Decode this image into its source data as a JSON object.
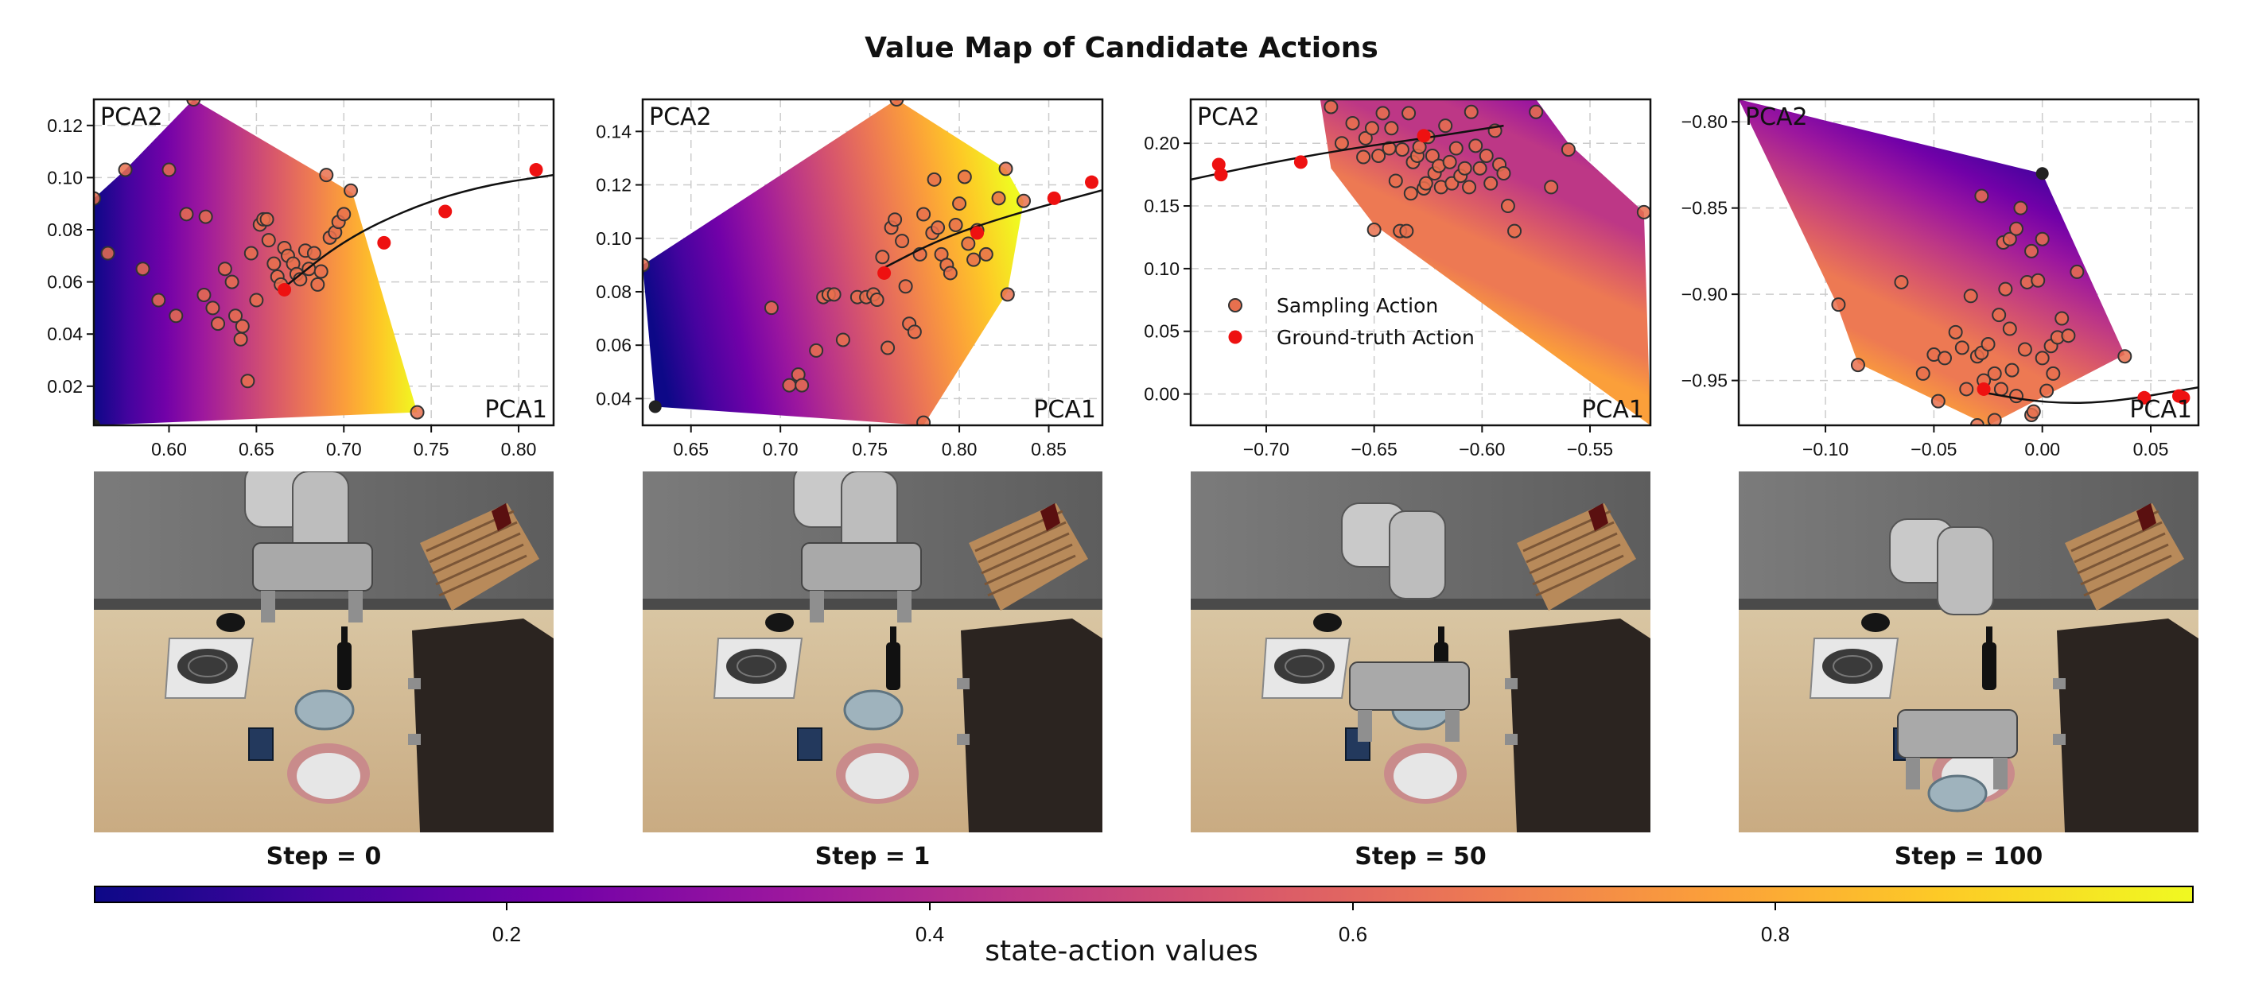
{
  "figure": {
    "title": "Value Map of Candidate Actions",
    "colorbar_label": "state-action values",
    "colorbar_ticks": [
      "0.2",
      "0.4",
      "0.6",
      "0.8"
    ],
    "colormap": "plasma"
  },
  "colors": {
    "sampling": "#e8704e",
    "ground_truth": "#ee1111",
    "marker_edge": "#333333",
    "boundary_point": "#222222",
    "grid": "#cccccc"
  },
  "legend": {
    "sampling": "Sampling Action",
    "ground_truth": "Ground-truth Action",
    "placement": "panel-3 middle-left"
  },
  "chart_data": [
    {
      "type": "scatter",
      "step_label": "Step = 0",
      "xlabel": "PCA1",
      "ylabel": "PCA2",
      "xlim": [
        0.557,
        0.82
      ],
      "ylim": [
        0.005,
        0.13
      ],
      "xticks": [
        0.6,
        0.65,
        0.7,
        0.75,
        0.8
      ],
      "xticklabels": [
        "0.60",
        "0.65",
        "0.70",
        "0.75",
        "0.80"
      ],
      "yticks": [
        0.02,
        0.04,
        0.06,
        0.08,
        0.1,
        0.12
      ],
      "yticklabels": [
        "0.02",
        "0.04",
        "0.06",
        "0.08",
        "0.10",
        "0.12"
      ],
      "value_gradient": {
        "direction": 0,
        "vmin": 0.05,
        "vmax": 0.97
      },
      "hull": [
        [
          0.614,
          0.13
        ],
        [
          0.69,
          0.1
        ],
        [
          0.705,
          0.094
        ],
        [
          0.742,
          0.01
        ],
        [
          0.557,
          0.005
        ],
        [
          0.557,
          0.092
        ],
        [
          0.575,
          0.103
        ]
      ],
      "sampling": [
        [
          0.557,
          0.092
        ],
        [
          0.565,
          0.071
        ],
        [
          0.575,
          0.103
        ],
        [
          0.585,
          0.065
        ],
        [
          0.594,
          0.053
        ],
        [
          0.6,
          0.103
        ],
        [
          0.604,
          0.047
        ],
        [
          0.61,
          0.086
        ],
        [
          0.621,
          0.085
        ],
        [
          0.62,
          0.055
        ],
        [
          0.625,
          0.05
        ],
        [
          0.628,
          0.044
        ],
        [
          0.632,
          0.065
        ],
        [
          0.636,
          0.06
        ],
        [
          0.638,
          0.047
        ],
        [
          0.641,
          0.038
        ],
        [
          0.642,
          0.043
        ],
        [
          0.647,
          0.071
        ],
        [
          0.652,
          0.082
        ],
        [
          0.654,
          0.084
        ],
        [
          0.65,
          0.053
        ],
        [
          0.656,
          0.084
        ],
        [
          0.657,
          0.076
        ],
        [
          0.66,
          0.067
        ],
        [
          0.662,
          0.062
        ],
        [
          0.664,
          0.059
        ],
        [
          0.666,
          0.073
        ],
        [
          0.668,
          0.07
        ],
        [
          0.671,
          0.067
        ],
        [
          0.673,
          0.063
        ],
        [
          0.675,
          0.061
        ],
        [
          0.678,
          0.072
        ],
        [
          0.68,
          0.065
        ],
        [
          0.683,
          0.071
        ],
        [
          0.685,
          0.059
        ],
        [
          0.687,
          0.064
        ],
        [
          0.69,
          0.101
        ],
        [
          0.692,
          0.077
        ],
        [
          0.695,
          0.079
        ],
        [
          0.697,
          0.083
        ],
        [
          0.7,
          0.086
        ],
        [
          0.704,
          0.095
        ],
        [
          0.645,
          0.022
        ],
        [
          0.614,
          0.13
        ],
        [
          0.742,
          0.01
        ]
      ],
      "ground_truth": [
        [
          0.666,
          0.057
        ],
        [
          0.723,
          0.075
        ],
        [
          0.758,
          0.087
        ],
        [
          0.81,
          0.103
        ]
      ],
      "boundary_points": [
        [
          0.557,
          0.005
        ]
      ],
      "trajectory": [
        [
          0.666,
          0.058
        ],
        [
          0.7,
          0.076
        ],
        [
          0.74,
          0.089
        ],
        [
          0.78,
          0.097
        ],
        [
          0.82,
          0.101
        ]
      ]
    },
    {
      "type": "scatter",
      "step_label": "Step = 1",
      "xlabel": "PCA1",
      "ylabel": "PCA2",
      "xlim": [
        0.623,
        0.88
      ],
      "ylim": [
        0.03,
        0.152
      ],
      "xticks": [
        0.65,
        0.7,
        0.75,
        0.8,
        0.85
      ],
      "xticklabels": [
        "0.65",
        "0.70",
        "0.75",
        "0.80",
        "0.85"
      ],
      "yticks": [
        0.04,
        0.06,
        0.08,
        0.1,
        0.12,
        0.14
      ],
      "yticklabels": [
        "0.04",
        "0.06",
        "0.08",
        "0.10",
        "0.12",
        "0.14"
      ],
      "value_gradient": {
        "direction": -10,
        "vmin": 0.05,
        "vmax": 0.96
      },
      "hull": [
        [
          0.623,
          0.09
        ],
        [
          0.765,
          0.152
        ],
        [
          0.826,
          0.126
        ],
        [
          0.836,
          0.114
        ],
        [
          0.827,
          0.08
        ],
        [
          0.78,
          0.03
        ],
        [
          0.63,
          0.037
        ]
      ],
      "sampling": [
        [
          0.623,
          0.09
        ],
        [
          0.695,
          0.074
        ],
        [
          0.705,
          0.045
        ],
        [
          0.71,
          0.049
        ],
        [
          0.712,
          0.045
        ],
        [
          0.72,
          0.058
        ],
        [
          0.724,
          0.078
        ],
        [
          0.727,
          0.079
        ],
        [
          0.73,
          0.079
        ],
        [
          0.735,
          0.062
        ],
        [
          0.743,
          0.078
        ],
        [
          0.748,
          0.078
        ],
        [
          0.752,
          0.079
        ],
        [
          0.754,
          0.077
        ],
        [
          0.757,
          0.093
        ],
        [
          0.76,
          0.059
        ],
        [
          0.762,
          0.104
        ],
        [
          0.764,
          0.107
        ],
        [
          0.768,
          0.099
        ],
        [
          0.77,
          0.082
        ],
        [
          0.772,
          0.068
        ],
        [
          0.775,
          0.065
        ],
        [
          0.778,
          0.094
        ],
        [
          0.78,
          0.109
        ],
        [
          0.785,
          0.102
        ],
        [
          0.786,
          0.122
        ],
        [
          0.788,
          0.104
        ],
        [
          0.79,
          0.094
        ],
        [
          0.793,
          0.09
        ],
        [
          0.795,
          0.087
        ],
        [
          0.798,
          0.105
        ],
        [
          0.8,
          0.113
        ],
        [
          0.803,
          0.123
        ],
        [
          0.805,
          0.098
        ],
        [
          0.808,
          0.092
        ],
        [
          0.81,
          0.103
        ],
        [
          0.815,
          0.094
        ],
        [
          0.822,
          0.115
        ],
        [
          0.826,
          0.126
        ],
        [
          0.827,
          0.079
        ],
        [
          0.836,
          0.114
        ],
        [
          0.765,
          0.152
        ],
        [
          0.78,
          0.031
        ]
      ],
      "ground_truth": [
        [
          0.758,
          0.087
        ],
        [
          0.81,
          0.102
        ],
        [
          0.853,
          0.115
        ],
        [
          0.874,
          0.121
        ]
      ],
      "boundary_points": [
        [
          0.63,
          0.037
        ]
      ],
      "trajectory": [
        [
          0.758,
          0.089
        ],
        [
          0.79,
          0.1
        ],
        [
          0.83,
          0.109
        ],
        [
          0.88,
          0.118
        ]
      ]
    },
    {
      "type": "scatter",
      "step_label": "Step = 50",
      "xlabel": "PCA1",
      "ylabel": "PCA2",
      "xlim": [
        -0.735,
        -0.522
      ],
      "ylim": [
        -0.025,
        0.235
      ],
      "xticks": [
        -0.7,
        -0.65,
        -0.6,
        -0.55
      ],
      "xticklabels": [
        "−0.70",
        "−0.65",
        "−0.60",
        "−0.55"
      ],
      "yticks": [
        0.0,
        0.05,
        0.1,
        0.15,
        0.2
      ],
      "yticklabels": [
        "0.00",
        "0.05",
        "0.10",
        "0.15",
        "0.20"
      ],
      "value_gradient": {
        "direction": 115,
        "vmin": 0.35,
        "vmax": 0.97
      },
      "hull": [
        [
          -0.675,
          0.235
        ],
        [
          -0.575,
          0.235
        ],
        [
          -0.56,
          0.2
        ],
        [
          -0.525,
          0.145
        ],
        [
          -0.522,
          -0.025
        ],
        [
          -0.65,
          0.135
        ],
        [
          -0.67,
          0.18
        ]
      ],
      "sampling": [
        [
          -0.67,
          0.229
        ],
        [
          -0.665,
          0.2
        ],
        [
          -0.66,
          0.216
        ],
        [
          -0.655,
          0.189
        ],
        [
          -0.654,
          0.204
        ],
        [
          -0.651,
          0.212
        ],
        [
          -0.65,
          0.131
        ],
        [
          -0.648,
          0.19
        ],
        [
          -0.646,
          0.224
        ],
        [
          -0.643,
          0.196
        ],
        [
          -0.642,
          0.212
        ],
        [
          -0.64,
          0.17
        ],
        [
          -0.638,
          0.13
        ],
        [
          -0.637,
          0.195
        ],
        [
          -0.635,
          0.13
        ],
        [
          -0.634,
          0.224
        ],
        [
          -0.633,
          0.16
        ],
        [
          -0.632,
          0.185
        ],
        [
          -0.63,
          0.19
        ],
        [
          -0.629,
          0.197
        ],
        [
          -0.627,
          0.164
        ],
        [
          -0.626,
          0.168
        ],
        [
          -0.625,
          0.205
        ],
        [
          -0.623,
          0.19
        ],
        [
          -0.622,
          0.176
        ],
        [
          -0.62,
          0.182
        ],
        [
          -0.619,
          0.165
        ],
        [
          -0.617,
          0.214
        ],
        [
          -0.615,
          0.185
        ],
        [
          -0.614,
          0.168
        ],
        [
          -0.612,
          0.196
        ],
        [
          -0.61,
          0.174
        ],
        [
          -0.608,
          0.18
        ],
        [
          -0.606,
          0.165
        ],
        [
          -0.605,
          0.225
        ],
        [
          -0.603,
          0.198
        ],
        [
          -0.601,
          0.18
        ],
        [
          -0.598,
          0.19
        ],
        [
          -0.596,
          0.168
        ],
        [
          -0.594,
          0.21
        ],
        [
          -0.592,
          0.183
        ],
        [
          -0.59,
          0.176
        ],
        [
          -0.588,
          0.15
        ],
        [
          -0.585,
          0.13
        ],
        [
          -0.575,
          0.225
        ],
        [
          -0.568,
          0.165
        ],
        [
          -0.56,
          0.195
        ],
        [
          -0.525,
          0.145
        ]
      ],
      "ground_truth": [
        [
          -0.722,
          0.183
        ],
        [
          -0.721,
          0.175
        ],
        [
          -0.684,
          0.185
        ],
        [
          -0.627,
          0.206
        ]
      ],
      "boundary_points": [],
      "trajectory": [
        [
          -0.735,
          0.171
        ],
        [
          -0.7,
          0.184
        ],
        [
          -0.66,
          0.196
        ],
        [
          -0.627,
          0.204
        ],
        [
          -0.59,
          0.214
        ]
      ]
    },
    {
      "type": "scatter",
      "step_label": "Step = 100",
      "xlabel": "PCA1",
      "ylabel": "PCA2",
      "xlim": [
        -0.14,
        0.072
      ],
      "ylim": [
        -0.976,
        -0.787
      ],
      "xticks": [
        -0.1,
        -0.05,
        0.0,
        0.05
      ],
      "xticklabels": [
        "−0.10",
        "−0.05",
        "0.00",
        "0.05"
      ],
      "yticks": [
        -0.95,
        -0.9,
        -0.85,
        -0.8
      ],
      "yticklabels": [
        "−0.95",
        "−0.90",
        "−0.85",
        "−0.80"
      ],
      "value_gradient": {
        "direction": 120,
        "vmin": 0.02,
        "vmax": 0.92
      },
      "hull": [
        [
          -0.14,
          -0.787
        ],
        [
          0.0,
          -0.83
        ],
        [
          0.038,
          -0.935
        ],
        [
          -0.025,
          -0.976
        ],
        [
          -0.085,
          -0.94
        ],
        [
          -0.095,
          -0.905
        ]
      ],
      "sampling": [
        [
          -0.094,
          -0.906
        ],
        [
          -0.085,
          -0.941
        ],
        [
          -0.065,
          -0.893
        ],
        [
          -0.055,
          -0.946
        ],
        [
          -0.05,
          -0.935
        ],
        [
          -0.048,
          -0.962
        ],
        [
          -0.045,
          -0.937
        ],
        [
          -0.04,
          -0.922
        ],
        [
          -0.037,
          -0.931
        ],
        [
          -0.035,
          -0.955
        ],
        [
          -0.033,
          -0.901
        ],
        [
          -0.03,
          -0.936
        ],
        [
          -0.028,
          -0.934
        ],
        [
          -0.027,
          -0.95
        ],
        [
          -0.025,
          -0.929
        ],
        [
          -0.022,
          -0.946
        ],
        [
          -0.02,
          -0.912
        ],
        [
          -0.019,
          -0.955
        ],
        [
          -0.017,
          -0.897
        ],
        [
          -0.015,
          -0.92
        ],
        [
          -0.014,
          -0.944
        ],
        [
          -0.012,
          -0.959
        ],
        [
          -0.01,
          -0.85
        ],
        [
          -0.008,
          -0.932
        ],
        [
          -0.007,
          -0.893
        ],
        [
          -0.005,
          -0.97
        ],
        [
          -0.004,
          -0.968
        ],
        [
          0.0,
          -0.937
        ],
        [
          0.002,
          -0.956
        ],
        [
          0.004,
          -0.93
        ],
        [
          0.005,
          -0.946
        ],
        [
          0.007,
          -0.925
        ],
        [
          0.009,
          -0.914
        ],
        [
          0.012,
          -0.924
        ],
        [
          -0.028,
          -0.843
        ],
        [
          -0.018,
          -0.87
        ],
        [
          -0.015,
          -0.868
        ],
        [
          -0.012,
          -0.862
        ],
        [
          -0.005,
          -0.875
        ],
        [
          -0.002,
          -0.892
        ],
        [
          0.0,
          -0.868
        ],
        [
          0.016,
          -0.887
        ],
        [
          -0.022,
          -0.973
        ],
        [
          -0.03,
          -0.976
        ],
        [
          0.038,
          -0.936
        ]
      ],
      "ground_truth": [
        [
          -0.027,
          -0.955
        ],
        [
          0.047,
          -0.96
        ],
        [
          0.063,
          -0.959
        ],
        [
          0.065,
          -0.96
        ]
      ],
      "boundary_points": [
        [
          0.0,
          -0.83
        ]
      ],
      "trajectory": [
        [
          -0.027,
          -0.957
        ],
        [
          0.0,
          -0.963
        ],
        [
          0.03,
          -0.963
        ],
        [
          0.072,
          -0.954
        ]
      ]
    }
  ]
}
